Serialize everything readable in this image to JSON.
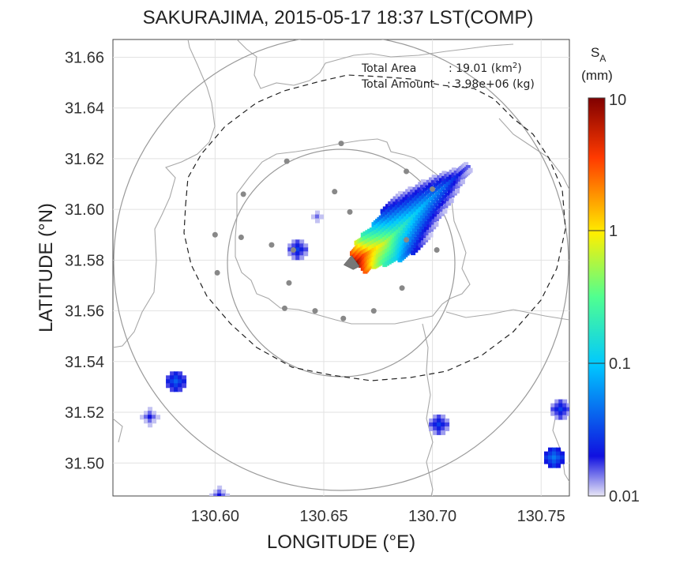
{
  "title": "SAKURAJIMA, 2015-05-17 18:37 LST(COMP)",
  "xlabel": "LONGITUDE (°E)",
  "ylabel": "LATITUDE (°N)",
  "annotation": {
    "area_label": "Total Area",
    "area_value": ": 19.01 (km",
    "area_sup": "2",
    "area_close": ")",
    "amount_label": "Total Amount",
    "amount_value": ": 3.98e+06 (kg)"
  },
  "colorbar": {
    "label": "S",
    "label_sub": "A",
    "unit": "(mm)",
    "ticks": [
      "10",
      "1",
      "0.1",
      "0.01"
    ]
  },
  "chart_data": {
    "type": "heatmap",
    "title": "SAKURAJIMA, 2015-05-17 18:37 LST(COMP)",
    "xlabel": "LONGITUDE (°E)",
    "ylabel": "LATITUDE (°N)",
    "xlim": [
      130.553,
      130.763
    ],
    "ylim": [
      31.487,
      31.667
    ],
    "xticks": [
      "130.60",
      "130.65",
      "130.70",
      "130.75"
    ],
    "yticks": [
      "31.50",
      "31.52",
      "31.54",
      "31.56",
      "31.58",
      "31.60",
      "31.62",
      "31.64",
      "31.66"
    ],
    "grid": true,
    "colorscale": "log, 0.01–10 mm, jet",
    "vent": [
      130.665,
      31.58
    ],
    "stations": [
      [
        130.658,
        31.626
      ],
      [
        130.633,
        31.619
      ],
      [
        130.655,
        31.607
      ],
      [
        130.613,
        31.606
      ],
      [
        130.688,
        31.615
      ],
      [
        130.662,
        31.599
      ],
      [
        130.7,
        31.608
      ],
      [
        130.6,
        31.59
      ],
      [
        130.612,
        31.589
      ],
      [
        130.626,
        31.586
      ],
      [
        130.636,
        31.584
      ],
      [
        130.688,
        31.588
      ],
      [
        130.702,
        31.584
      ],
      [
        130.601,
        31.575
      ],
      [
        130.634,
        31.571
      ],
      [
        130.686,
        31.569
      ],
      [
        130.632,
        31.561
      ],
      [
        130.646,
        31.56
      ],
      [
        130.659,
        31.557
      ],
      [
        130.673,
        31.56
      ]
    ],
    "ash_plume": {
      "core": [
        [
          130.665,
          31.58,
          8
        ],
        [
          130.668,
          31.583,
          3
        ],
        [
          130.672,
          31.585,
          1.2
        ],
        [
          130.678,
          31.588,
          0.6
        ]
      ],
      "mid": [
        [
          130.683,
          31.592,
          0.25
        ],
        [
          130.69,
          31.598,
          0.12
        ],
        [
          130.697,
          31.604,
          0.07
        ],
        [
          130.705,
          31.61,
          0.04
        ]
      ],
      "edge": [
        [
          130.712,
          31.615,
          0.02
        ],
        [
          130.716,
          31.618,
          0.015
        ]
      ]
    },
    "isolated_echoes": [
      [
        130.637,
        31.585,
        0.03
      ],
      [
        130.646,
        31.598,
        0.015
      ],
      [
        130.569,
        31.519,
        0.02
      ],
      [
        130.581,
        31.533,
        0.04
      ],
      [
        130.601,
        31.488,
        0.02
      ],
      [
        130.702,
        31.516,
        0.03
      ],
      [
        130.758,
        31.522,
        0.03
      ],
      [
        130.755,
        31.503,
        0.05
      ]
    ]
  }
}
